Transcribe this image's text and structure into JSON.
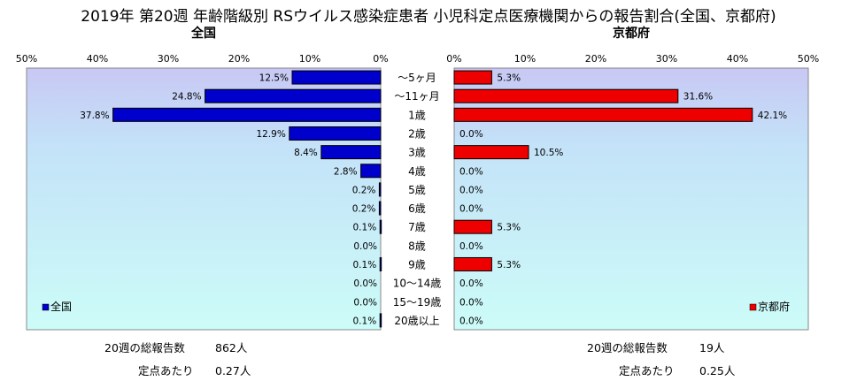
{
  "title": "2019年 第20週 年齢階級別 RSウイルス感染症患者 小児科定点医療機関からの報告割合(全国、京都府)",
  "chart_data": {
    "type": "bar",
    "orientation": "horizontal",
    "categories": [
      "〜5ヶ月",
      "〜11ヶ月",
      "1歳",
      "2歳",
      "3歳",
      "4歳",
      "5歳",
      "6歳",
      "7歳",
      "8歳",
      "9歳",
      "10〜14歳",
      "15〜19歳",
      "20歳以上"
    ],
    "xlim": [
      0,
      50
    ],
    "tick_labels": [
      "50%",
      "40%",
      "30%",
      "20%",
      "10%",
      "0%"
    ],
    "tick_labels_right": [
      "0%",
      "10%",
      "20%",
      "30%",
      "40%",
      "50%"
    ],
    "grid": false,
    "panels": [
      {
        "id": "left",
        "title": "全国",
        "direction": "left",
        "legend": "全国",
        "legend_position": "bottom-left",
        "color": "#0000cc",
        "values": [
          12.5,
          24.8,
          37.8,
          12.9,
          8.4,
          2.8,
          0.2,
          0.2,
          0.1,
          0.0,
          0.1,
          0.0,
          0.0,
          0.1
        ],
        "labels": [
          "12.5%",
          "24.8%",
          "37.8%",
          "12.9%",
          "8.4%",
          "2.8%",
          "0.2%",
          "0.2%",
          "0.1%",
          "0.0%",
          "0.1%",
          "0.0%",
          "0.0%",
          "0.1%"
        ]
      },
      {
        "id": "right",
        "title": "京都府",
        "direction": "right",
        "legend": "京都府",
        "legend_position": "bottom-right",
        "color": "#ee0000",
        "values": [
          5.3,
          31.6,
          42.1,
          0.0,
          10.5,
          0.0,
          0.0,
          0.0,
          5.3,
          0.0,
          5.3,
          0.0,
          0.0,
          0.0
        ],
        "labels": [
          "5.3%",
          "31.6%",
          "42.1%",
          "0.0%",
          "10.5%",
          "0.0%",
          "0.0%",
          "0.0%",
          "5.3%",
          "0.0%",
          "5.3%",
          "0.0%",
          "0.0%",
          "0.0%"
        ]
      }
    ]
  },
  "footer": {
    "left": {
      "total_label": "20週の総報告数",
      "total_value": "862人",
      "per_label": "定点あたり",
      "per_value": "0.27人"
    },
    "right": {
      "total_label": "20週の総報告数",
      "total_value": "19人",
      "per_label": "定点あたり",
      "per_value": "0.25人"
    }
  }
}
